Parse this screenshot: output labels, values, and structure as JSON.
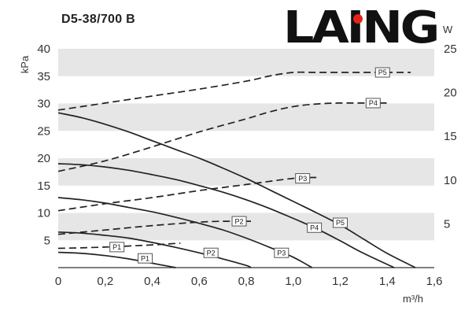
{
  "title": "D5-38/700 B",
  "logo": {
    "text": "LAING",
    "color": "#111111",
    "accent": "#e2231a"
  },
  "chart_data": {
    "type": "line",
    "title": "D5-38/700 B",
    "xlabel": "m³/h",
    "ylabel_left": "kPa",
    "ylabel_right": "W",
    "xlim": [
      0,
      1.6
    ],
    "ylim_left": [
      0,
      40
    ],
    "ylim_right": [
      0,
      25
    ],
    "x_ticks": [
      "0",
      "0,2",
      "0,4",
      "0,6",
      "0,8",
      "1,0",
      "1,2",
      "1,4",
      "1,6"
    ],
    "y_left_ticks": [
      "5",
      "10",
      "15",
      "20",
      "25",
      "30",
      "35",
      "40"
    ],
    "y_right_ticks": [
      "5",
      "10",
      "15",
      "20",
      "25"
    ],
    "grid": "horizontal bands",
    "pressure_series": [
      {
        "name": "P1",
        "axis": "left",
        "style": "solid",
        "x": [
          0,
          0.1,
          0.2,
          0.3,
          0.4,
          0.45,
          0.5
        ],
        "y": [
          2.8,
          2.6,
          2.2,
          1.6,
          0.8,
          0.4,
          0
        ],
        "label_at": [
          0.37,
          1.7
        ]
      },
      {
        "name": "P2",
        "axis": "left",
        "style": "solid",
        "x": [
          0,
          0.1,
          0.2,
          0.3,
          0.4,
          0.5,
          0.6,
          0.7,
          0.8,
          0.82
        ],
        "y": [
          6.5,
          6.3,
          5.9,
          5.4,
          4.6,
          3.7,
          2.7,
          1.6,
          0.4,
          0
        ],
        "label_at": [
          0.65,
          2.7
        ]
      },
      {
        "name": "P3",
        "axis": "left",
        "style": "solid",
        "x": [
          0,
          0.1,
          0.2,
          0.3,
          0.4,
          0.5,
          0.6,
          0.7,
          0.8,
          0.9,
          1.0,
          1.08
        ],
        "y": [
          12.8,
          12.4,
          11.8,
          11.0,
          10.2,
          9.2,
          8.1,
          6.9,
          5.4,
          3.7,
          1.9,
          0
        ],
        "label_at": [
          0.95,
          2.7
        ]
      },
      {
        "name": "P4",
        "axis": "left",
        "style": "solid",
        "x": [
          0,
          0.1,
          0.2,
          0.3,
          0.4,
          0.5,
          0.6,
          0.7,
          0.8,
          0.9,
          1.0,
          1.1,
          1.2,
          1.3,
          1.43
        ],
        "y": [
          19.0,
          18.8,
          18.4,
          17.8,
          17.0,
          16.1,
          15.0,
          13.8,
          12.4,
          10.8,
          9.0,
          7.1,
          4.9,
          2.6,
          0
        ],
        "label_at": [
          1.09,
          7.3
        ]
      },
      {
        "name": "P5",
        "axis": "left",
        "style": "solid",
        "x": [
          0,
          0.1,
          0.2,
          0.3,
          0.4,
          0.5,
          0.6,
          0.7,
          0.8,
          0.9,
          1.0,
          1.1,
          1.2,
          1.3,
          1.4,
          1.52
        ],
        "y": [
          28.3,
          27.4,
          26.2,
          24.8,
          23.2,
          21.6,
          20.0,
          18.2,
          16.3,
          14.2,
          12.1,
          10.0,
          7.8,
          5.2,
          2.6,
          0
        ],
        "label_at": [
          1.2,
          8.2
        ]
      }
    ],
    "power_series": [
      {
        "name": "P1",
        "axis": "right",
        "style": "dashed",
        "x": [
          0,
          0.2,
          0.4,
          0.52
        ],
        "y": [
          2.2,
          2.35,
          2.6,
          2.8
        ],
        "label_at": [
          0.25,
          2.35
        ]
      },
      {
        "name": "P2",
        "axis": "right",
        "style": "dashed",
        "x": [
          0,
          0.2,
          0.4,
          0.6,
          0.72,
          0.82
        ],
        "y": [
          3.8,
          4.3,
          4.8,
          5.2,
          5.3,
          5.3
        ],
        "label_at": [
          0.77,
          5.3
        ]
      },
      {
        "name": "P3",
        "axis": "right",
        "style": "dashed",
        "x": [
          0,
          0.2,
          0.4,
          0.6,
          0.8,
          1.0,
          1.1
        ],
        "y": [
          6.5,
          7.3,
          8.0,
          8.8,
          9.5,
          10.2,
          10.3
        ],
        "label_at": [
          1.04,
          10.2
        ]
      },
      {
        "name": "P4",
        "axis": "right",
        "style": "dashed",
        "x": [
          0,
          0.2,
          0.4,
          0.6,
          0.8,
          0.9,
          1.0,
          1.1,
          1.2,
          1.3,
          1.4
        ],
        "y": [
          11.0,
          12.2,
          13.8,
          15.5,
          17.0,
          17.8,
          18.4,
          18.7,
          18.8,
          18.8,
          18.8
        ],
        "label_at": [
          1.34,
          18.8
        ]
      },
      {
        "name": "P5",
        "axis": "right",
        "style": "dashed",
        "x": [
          0,
          0.2,
          0.4,
          0.6,
          0.8,
          0.9,
          1.0,
          1.1,
          1.2,
          1.3,
          1.4,
          1.5
        ],
        "y": [
          18.0,
          18.8,
          19.6,
          20.4,
          21.3,
          21.9,
          22.3,
          22.3,
          22.3,
          22.3,
          22.3,
          22.3
        ],
        "label_at": [
          1.38,
          22.3
        ]
      }
    ],
    "colors": {
      "line": "#222222",
      "band": "#e6e6e6",
      "background": "#ffffff"
    }
  }
}
